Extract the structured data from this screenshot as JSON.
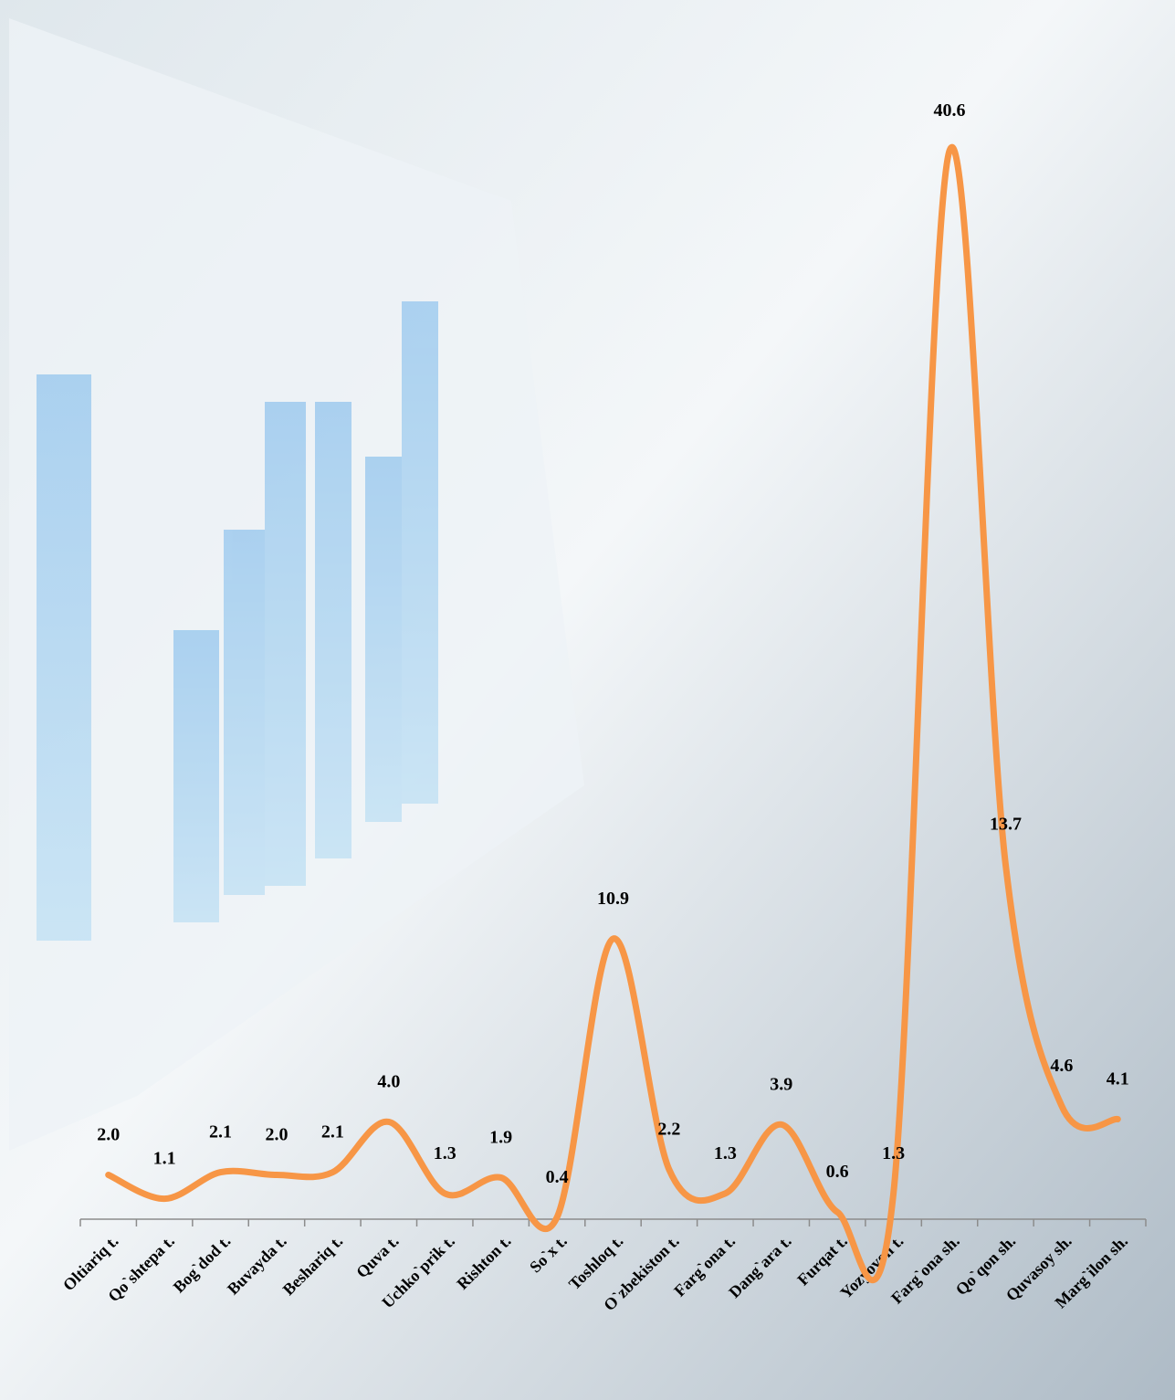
{
  "chart_data": {
    "type": "line",
    "categories": [
      "Oltiariq t.",
      "Qo`shtepa t.",
      "Bog`dod t.",
      "Buvayda t.",
      "Beshariq t.",
      "Quva t.",
      "Uchko`prik t.",
      "Rishton t.",
      "So`x t.",
      "Toshloq t.",
      "O`zbekiston t.",
      "Farg`ona t.",
      "Dang`ara t.",
      "Furqat t.",
      "Yozyovon t.",
      "Farg`ona sh.",
      "Qo`qon sh.",
      "Quvasoy sh.",
      "Marg`ilon sh."
    ],
    "values": [
      2.0,
      1.1,
      2.1,
      2.0,
      2.1,
      4.0,
      1.3,
      1.9,
      0.4,
      10.9,
      2.2,
      1.3,
      3.9,
      0.6,
      1.3,
      40.6,
      13.7,
      4.6,
      4.1
    ],
    "value_labels": [
      "2.0",
      "1.1",
      "2.1",
      "2.0",
      "2.1",
      "4.0",
      "1.3",
      "1.9",
      "0.4",
      "10.9",
      "2.2",
      "1.3",
      "3.9",
      "0.6",
      "1.3",
      "40.6",
      "13.7",
      "4.6",
      "4.1"
    ],
    "color": "#f79646",
    "smooth": true
  }
}
